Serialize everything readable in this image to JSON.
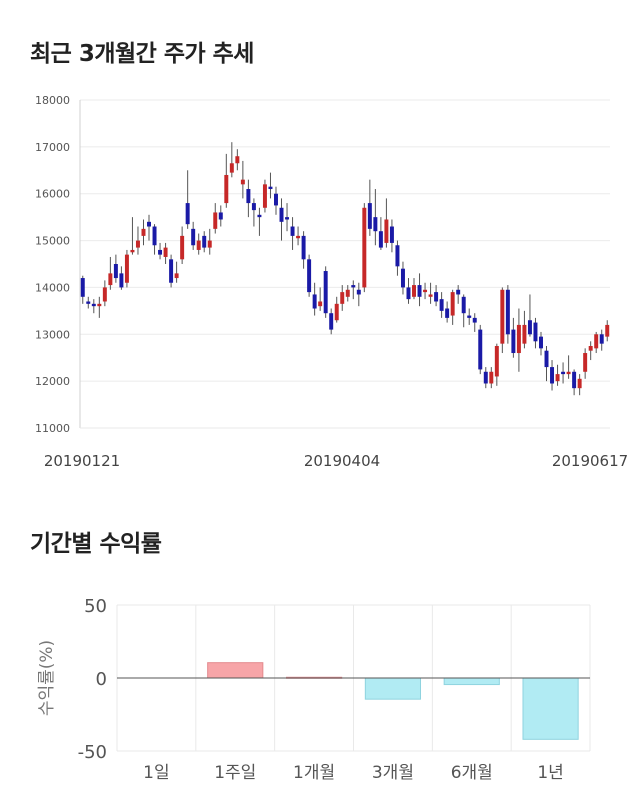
{
  "sections": {
    "price_title": "최근 3개월간 주가 추세",
    "returns_title": "기간별 수익률"
  },
  "colors": {
    "up": "#c62828",
    "down": "#1a1aa6",
    "positive_bar": "#f7a5a8",
    "negative_bar": "#b1ebf3"
  },
  "chart_data": [
    {
      "type": "candlestick",
      "title": "최근 3개월간 주가 추세",
      "ylim": [
        11000,
        18000
      ],
      "y_ticks": [
        11000,
        12000,
        13000,
        14000,
        15000,
        16000,
        17000,
        18000
      ],
      "x_ticks": [
        "20190121",
        "20190404",
        "20190617"
      ],
      "grid": true,
      "candles": [
        [
          14200,
          13800,
          14250,
          13650
        ],
        [
          13700,
          13650,
          13800,
          13550
        ],
        [
          13650,
          13600,
          13750,
          13450
        ],
        [
          13600,
          13650,
          13800,
          13350
        ],
        [
          13700,
          14000,
          14150,
          13600
        ],
        [
          14050,
          14300,
          14650,
          13950
        ],
        [
          14500,
          14200,
          14700,
          14100
        ],
        [
          14300,
          14000,
          14450,
          13950
        ],
        [
          14100,
          14700,
          14800,
          14000
        ],
        [
          14750,
          14800,
          15500,
          14700
        ],
        [
          14850,
          15000,
          15300,
          14700
        ],
        [
          15100,
          15250,
          15450,
          14900
        ],
        [
          15400,
          15300,
          15550,
          15000
        ],
        [
          15300,
          14900,
          15350,
          14700
        ],
        [
          14800,
          14700,
          14950,
          14600
        ],
        [
          14650,
          14850,
          14950,
          14500
        ],
        [
          14600,
          14100,
          14700,
          14000
        ],
        [
          14200,
          14300,
          14550,
          14100
        ],
        [
          14600,
          15100,
          15300,
          14500
        ],
        [
          15800,
          15350,
          16500,
          15250
        ],
        [
          15250,
          14900,
          15400,
          14800
        ],
        [
          14800,
          15000,
          15150,
          14700
        ],
        [
          15100,
          14850,
          15200,
          14750
        ],
        [
          14850,
          15000,
          15250,
          14700
        ],
        [
          15250,
          15600,
          15800,
          15150
        ],
        [
          15600,
          15450,
          15750,
          15300
        ],
        [
          15800,
          16400,
          16850,
          15700
        ],
        [
          16450,
          16650,
          17100,
          16350
        ],
        [
          16650,
          16800,
          16950,
          16500
        ],
        [
          16200,
          16300,
          16700,
          15900
        ],
        [
          16100,
          15800,
          16300,
          15500
        ],
        [
          15800,
          15650,
          15900,
          15300
        ],
        [
          15550,
          15500,
          15700,
          15100
        ],
        [
          15700,
          16200,
          16300,
          15600
        ],
        [
          16150,
          16100,
          16450,
          15900
        ],
        [
          16000,
          15750,
          16150,
          15550
        ],
        [
          15700,
          15400,
          15900,
          15000
        ],
        [
          15500,
          15450,
          15800,
          15200
        ],
        [
          15300,
          15100,
          15500,
          14800
        ],
        [
          15050,
          15100,
          15300,
          14900
        ],
        [
          15100,
          14600,
          15200,
          14400
        ],
        [
          14600,
          13900,
          14700,
          13800
        ],
        [
          13850,
          13550,
          14100,
          13400
        ],
        [
          13600,
          13700,
          14000,
          13500
        ],
        [
          14350,
          13450,
          14450,
          13350
        ],
        [
          13450,
          13100,
          13550,
          13000
        ],
        [
          13300,
          13650,
          13800,
          13250
        ],
        [
          13650,
          13900,
          14050,
          13500
        ],
        [
          13800,
          13950,
          14050,
          13700
        ],
        [
          14050,
          14000,
          14150,
          13750
        ],
        [
          13950,
          13850,
          14100,
          13600
        ],
        [
          14000,
          15700,
          15800,
          13900
        ],
        [
          15800,
          15250,
          16300,
          15100
        ],
        [
          15500,
          15200,
          16100,
          14900
        ],
        [
          15200,
          14850,
          15500,
          14800
        ],
        [
          14950,
          15450,
          15900,
          14850
        ],
        [
          15300,
          14950,
          15450,
          14750
        ],
        [
          14900,
          14450,
          15000,
          14250
        ],
        [
          14400,
          14000,
          14550,
          13850
        ],
        [
          14000,
          13750,
          14200,
          13650
        ],
        [
          13800,
          14050,
          14200,
          13750
        ],
        [
          14050,
          13800,
          14300,
          13600
        ],
        [
          13900,
          13950,
          14100,
          13750
        ],
        [
          13800,
          13850,
          14100,
          13650
        ],
        [
          13900,
          13700,
          14050,
          13600
        ],
        [
          13750,
          13500,
          13900,
          13350
        ],
        [
          13550,
          13350,
          13700,
          13250
        ],
        [
          13400,
          13900,
          13950,
          13200
        ],
        [
          13950,
          13850,
          14050,
          13650
        ],
        [
          13800,
          13450,
          13850,
          13150
        ],
        [
          13400,
          13350,
          13550,
          13200
        ],
        [
          13350,
          13250,
          13450,
          13050
        ],
        [
          13100,
          12250,
          13200,
          12150
        ],
        [
          12200,
          11950,
          12300,
          11850
        ],
        [
          11950,
          12200,
          12300,
          11850
        ],
        [
          12100,
          12750,
          12800,
          11900
        ],
        [
          12800,
          13950,
          14000,
          12600
        ],
        [
          13950,
          13000,
          14050,
          12800
        ],
        [
          13100,
          12600,
          13350,
          12500
        ],
        [
          12600,
          13200,
          13550,
          12200
        ],
        [
          12800,
          13200,
          13500,
          12700
        ],
        [
          13300,
          13000,
          13850,
          12950
        ],
        [
          13250,
          12850,
          13350,
          12700
        ],
        [
          12950,
          12700,
          13050,
          12550
        ],
        [
          12650,
          12300,
          12750,
          12000
        ],
        [
          12300,
          11950,
          12450,
          11800
        ],
        [
          12000,
          12150,
          12350,
          11900
        ],
        [
          12200,
          12150,
          12400,
          11950
        ],
        [
          12150,
          12200,
          12550,
          12050
        ],
        [
          12200,
          11850,
          12250,
          11700
        ],
        [
          11850,
          12050,
          12150,
          11700
        ],
        [
          12200,
          12600,
          12700,
          12050
        ],
        [
          12650,
          12750,
          12850,
          12450
        ],
        [
          12700,
          13000,
          13050,
          12600
        ],
        [
          13000,
          12800,
          13100,
          12650
        ],
        [
          12950,
          13200,
          13300,
          12850
        ]
      ]
    },
    {
      "type": "bar",
      "title": "기간별 수익률",
      "categories": [
        "1일",
        "1주일",
        "1개월",
        "3개월",
        "6개월",
        "1년"
      ],
      "values": [
        0,
        10.5,
        0.5,
        -14.5,
        -4.5,
        -42
      ],
      "ylim": [
        -50,
        50
      ],
      "y_ticks": [
        "50",
        "0",
        "-50"
      ],
      "ylabel": "수익률(%)",
      "grid": true
    }
  ]
}
